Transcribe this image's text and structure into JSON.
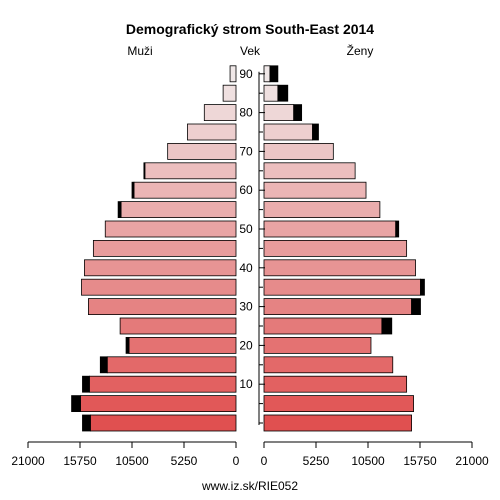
{
  "chart_data": {
    "type": "bar",
    "title": "Demografický strom South-East 2014",
    "left_label": "Muži",
    "center_label": "Vek",
    "right_label": "Ženy",
    "source": "www.iz.sk/RIE052",
    "age_groups": [
      "0-4",
      "5-9",
      "10-14",
      "15-19",
      "20-24",
      "25-29",
      "30-34",
      "35-39",
      "40-44",
      "45-49",
      "50-54",
      "55-59",
      "60-64",
      "65-69",
      "70-74",
      "75-79",
      "80-84",
      "85-89",
      "90+"
    ],
    "age_ticks": [
      {
        "value": 10,
        "label": "10",
        "row": 2
      },
      {
        "value": 20,
        "label": "20",
        "row": 4
      },
      {
        "value": 30,
        "label": "30",
        "row": 6
      },
      {
        "value": 40,
        "label": "40",
        "row": 8
      },
      {
        "value": 50,
        "label": "50",
        "row": 10
      },
      {
        "value": 60,
        "label": "60",
        "row": 12
      },
      {
        "value": 70,
        "label": "70",
        "row": 14
      },
      {
        "value": 80,
        "label": "80",
        "row": 16
      },
      {
        "value": 90,
        "label": "90",
        "row": 18
      }
    ],
    "xlim": [
      0,
      21000
    ],
    "x_ticks": [
      {
        "value": 21000,
        "label": "21000"
      },
      {
        "value": 15750,
        "label": "15750"
      },
      {
        "value": 10500,
        "label": "10500"
      },
      {
        "value": 5250,
        "label": "5250"
      },
      {
        "value": 0,
        "label": "0"
      }
    ],
    "series": [
      {
        "side": "left",
        "values": [
          14700,
          15700,
          14800,
          13000,
          10800,
          11700,
          14900,
          15600,
          15300,
          14400,
          13200,
          11600,
          10300,
          9200,
          6900,
          4900,
          3200,
          1300,
          600
        ],
        "excess": [
          800,
          900,
          700,
          700,
          300,
          0,
          0,
          0,
          0,
          0,
          0,
          300,
          200,
          100,
          0,
          0,
          0,
          0,
          0
        ]
      },
      {
        "side": "right",
        "values": [
          14900,
          15100,
          14400,
          13000,
          10800,
          11900,
          14900,
          15800,
          15300,
          14400,
          13300,
          11700,
          10300,
          9200,
          7000,
          4900,
          3000,
          1400,
          600
        ],
        "excess": [
          0,
          0,
          0,
          0,
          0,
          1000,
          900,
          400,
          0,
          0,
          300,
          0,
          0,
          0,
          0,
          600,
          800,
          1000,
          800
        ]
      }
    ],
    "colors": {
      "row0": "#e05050",
      "row18": "#f0e8e8",
      "excess": "#000000",
      "outline": "#000000"
    }
  }
}
